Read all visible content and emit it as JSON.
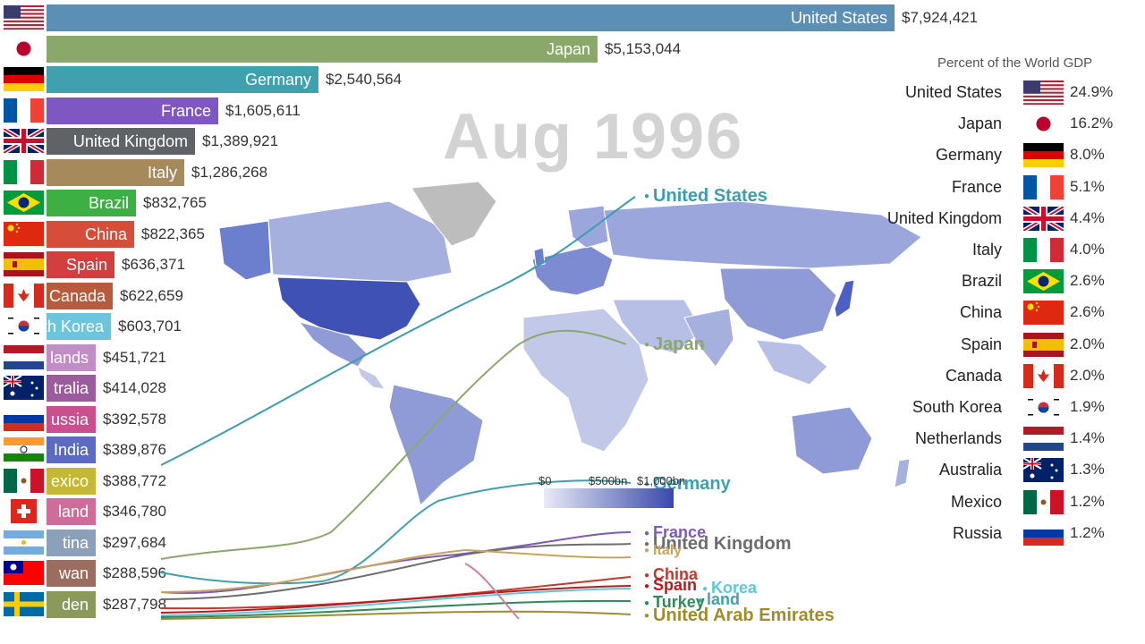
{
  "period": "Aug 1996",
  "chart_data": [
    {
      "type": "bar",
      "title": "",
      "categories": [
        "United States",
        "Japan",
        "Germany",
        "France",
        "United Kingdom",
        "Italy",
        "Brazil",
        "China",
        "Spain",
        "Canada",
        "South Korea",
        "Netherlands",
        "Australia",
        "Russia",
        "India",
        "Mexico",
        "Switzerland",
        "Argentina",
        "Taiwan",
        "Sweden"
      ],
      "display_labels": [
        "United States",
        "Japan",
        "Germany",
        "France",
        "United Kingdom",
        "Italy",
        "Brazil",
        "China",
        "Spain",
        "Canada",
        "th Korea",
        "lands",
        "tralia",
        "ussia",
        "India",
        "exico",
        "land",
        "tina",
        "wan",
        "den"
      ],
      "values": [
        7924421,
        5153044,
        2540564,
        1605611,
        1389921,
        1286268,
        832765,
        822365,
        636371,
        622659,
        603701,
        451721,
        414028,
        392578,
        389876,
        388772,
        346780,
        297684,
        288596,
        287798
      ],
      "value_labels": [
        "$7,924,421",
        "$5,153,044",
        "$2,540,564",
        "$1,605,611",
        "$1,389,921",
        "$1,286,268",
        "$832,765",
        "$822,365",
        "$636,371",
        "$622,659",
        "$603,701",
        "$451,721",
        "$414,028",
        "$392,578",
        "$389,876",
        "$388,772",
        "$346,780",
        "$297,684",
        "$288,596",
        "$287,798"
      ],
      "colors": [
        "#5b8fb5",
        "#8aa86a",
        "#3fa1ae",
        "#7e57c2",
        "#5f6368",
        "#a68a5b",
        "#3cb043",
        "#d64d3a",
        "#d33f3f",
        "#b85b3d",
        "#6bc6dd",
        "#c28dc6",
        "#9c5b9c",
        "#c94f8e",
        "#5c6bc0",
        "#c5b834",
        "#d06c9a",
        "#8ca0ba",
        "#9a6d5f",
        "#8a9a5b"
      ]
    },
    {
      "type": "bar",
      "title": "Percent of the World GDP",
      "categories": [
        "United States",
        "Japan",
        "Germany",
        "France",
        "United Kingdom",
        "Italy",
        "Brazil",
        "China",
        "Spain",
        "Canada",
        "South Korea",
        "Netherlands",
        "Australia",
        "Mexico",
        "Russia"
      ],
      "values": [
        24.9,
        16.2,
        8.0,
        5.1,
        4.4,
        4.0,
        2.6,
        2.6,
        2.0,
        2.0,
        1.9,
        1.4,
        1.3,
        1.2,
        1.2
      ],
      "value_labels": [
        "24.9%",
        "16.2%",
        "8.0%",
        "5.1%",
        "4.4%",
        "4.0%",
        "2.6%",
        "2.6%",
        "2.0%",
        "2.0%",
        "1.9%",
        "1.4%",
        "1.3%",
        "1.2%",
        "1.2%"
      ]
    },
    {
      "type": "line",
      "series_labels": [
        {
          "name": "United States",
          "color": "#3b9db0"
        },
        {
          "name": "Japan",
          "color": "#8aa86a"
        },
        {
          "name": "Germany",
          "color": "#3fa1ae"
        },
        {
          "name": "France",
          "color": "#7e57c2"
        },
        {
          "name": "United Kingdom",
          "color": "#6d6d6d"
        },
        {
          "name": "Italy",
          "color": "#c9a45b"
        },
        {
          "name": "China",
          "color": "#c0392b"
        },
        {
          "name": "Spain",
          "color": "#b71c1c"
        },
        {
          "name": "Korea",
          "color": "#5bc8dc"
        },
        {
          "name": "Turkey",
          "color": "#2e8b57"
        },
        {
          "name": "land",
          "color": "#3fa1ae"
        },
        {
          "name": "United Arab Emirates",
          "color": "#a08c2e"
        }
      ]
    }
  ],
  "flag_codes": [
    "us",
    "jp",
    "de",
    "fr",
    "gb",
    "it",
    "br",
    "cn",
    "es",
    "ca",
    "kr",
    "nl",
    "au",
    "ru",
    "in",
    "mx",
    "ch",
    "ar",
    "tw",
    "se"
  ],
  "legend_flag_codes": [
    "us",
    "jp",
    "de",
    "fr",
    "gb",
    "it",
    "br",
    "cn",
    "es",
    "ca",
    "kr",
    "nl",
    "au",
    "mx",
    "ru"
  ],
  "map_scale": {
    "min_label": "$0",
    "mid_label": "$500bn",
    "max_label": "$1,000bn",
    "low_color": "#e8eaf6",
    "high_color": "#3949ab"
  }
}
